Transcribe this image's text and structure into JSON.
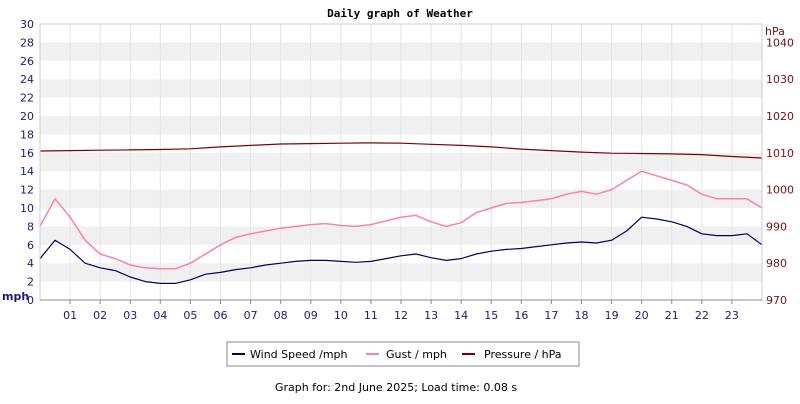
{
  "chart_data": {
    "type": "line",
    "title": "Daily graph of Weather",
    "x": {
      "range": [
        0,
        24
      ],
      "tick_labels": [
        "01",
        "02",
        "03",
        "04",
        "05",
        "06",
        "07",
        "08",
        "09",
        "10",
        "11",
        "12",
        "13",
        "14",
        "15",
        "16",
        "17",
        "18",
        "19",
        "20",
        "21",
        "22",
        "23"
      ]
    },
    "y_left": {
      "unit": "mph",
      "range": [
        0,
        30
      ],
      "tick_labels": [
        "0",
        "2",
        "4",
        "6",
        "8",
        "10",
        "12",
        "14",
        "16",
        "18",
        "20",
        "22",
        "24",
        "26",
        "28",
        "30"
      ]
    },
    "y_right": {
      "unit": "hPa",
      "range": [
        970,
        1045
      ],
      "tick_labels": [
        "970",
        "980",
        "990",
        "1000",
        "1010",
        "1020",
        "1030",
        "1040"
      ]
    },
    "grid": "alternating horizontal bands",
    "legend_position": "bottom-center",
    "series": [
      {
        "name": "Wind Speed /mph",
        "color": "#000066",
        "axis": "left",
        "x": [
          0,
          0.5,
          1,
          1.5,
          2,
          2.5,
          3,
          3.5,
          4,
          4.5,
          5,
          5.5,
          6,
          6.5,
          7,
          7.5,
          8,
          8.5,
          9,
          9.5,
          10,
          10.5,
          11,
          11.5,
          12,
          12.5,
          13,
          13.5,
          14,
          14.5,
          15,
          15.5,
          16,
          16.5,
          17,
          17.5,
          18,
          18.5,
          19,
          19.5,
          20,
          20.5,
          21,
          21.5,
          22,
          22.5,
          23,
          23.5,
          24
        ],
        "values": [
          4.5,
          6.5,
          5.5,
          4,
          3.5,
          3.2,
          2.5,
          2,
          1.8,
          1.8,
          2.2,
          2.8,
          3,
          3.3,
          3.5,
          3.8,
          4,
          4.2,
          4.3,
          4.3,
          4.2,
          4.1,
          4.2,
          4.5,
          4.8,
          5,
          4.6,
          4.3,
          4.5,
          5,
          5.3,
          5.5,
          5.6,
          5.8,
          6,
          6.2,
          6.3,
          6.2,
          6.5,
          7.5,
          9,
          8.8,
          8.5,
          8,
          7.2,
          7,
          7,
          7.2,
          6
        ]
      },
      {
        "name": "Gust / mph",
        "color": "#ff80aa",
        "axis": "left",
        "x": [
          0,
          0.5,
          1,
          1.5,
          2,
          2.5,
          3,
          3.5,
          4,
          4.5,
          5,
          5.5,
          6,
          6.5,
          7,
          7.5,
          8,
          8.5,
          9,
          9.5,
          10,
          10.5,
          11,
          11.5,
          12,
          12.5,
          13,
          13.5,
          14,
          14.5,
          15,
          15.5,
          16,
          16.5,
          17,
          17.5,
          18,
          18.5,
          19,
          19.5,
          20,
          20.5,
          21,
          21.5,
          22,
          22.5,
          23,
          23.5,
          24
        ],
        "values": [
          8,
          11,
          9,
          6.5,
          5,
          4.5,
          3.8,
          3.5,
          3.4,
          3.4,
          4,
          5,
          6,
          6.8,
          7.2,
          7.5,
          7.8,
          8,
          8.2,
          8.3,
          8.1,
          8,
          8.2,
          8.6,
          9,
          9.2,
          8.5,
          8,
          8.4,
          9.5,
          10,
          10.5,
          10.6,
          10.8,
          11,
          11.5,
          11.8,
          11.5,
          12,
          13,
          14,
          13.5,
          13,
          12.5,
          11.5,
          11,
          11,
          11,
          10
        ]
      },
      {
        "name": "Pressure / hPa",
        "color": "#800000",
        "axis": "right",
        "x": [
          0,
          1,
          2,
          3,
          4,
          5,
          6,
          7,
          8,
          9,
          10,
          11,
          12,
          13,
          14,
          15,
          16,
          17,
          18,
          19,
          20,
          21,
          22,
          23,
          24
        ],
        "values": [
          1010.5,
          1010.6,
          1010.7,
          1010.8,
          1010.9,
          1011.1,
          1011.6,
          1012,
          1012.4,
          1012.5,
          1012.6,
          1012.7,
          1012.6,
          1012.3,
          1012,
          1011.6,
          1011,
          1010.6,
          1010.2,
          1009.9,
          1009.8,
          1009.7,
          1009.5,
          1009,
          1008.6
        ]
      }
    ],
    "footer": "Graph for: 2nd June 2025; Load time: 0.08 s"
  }
}
